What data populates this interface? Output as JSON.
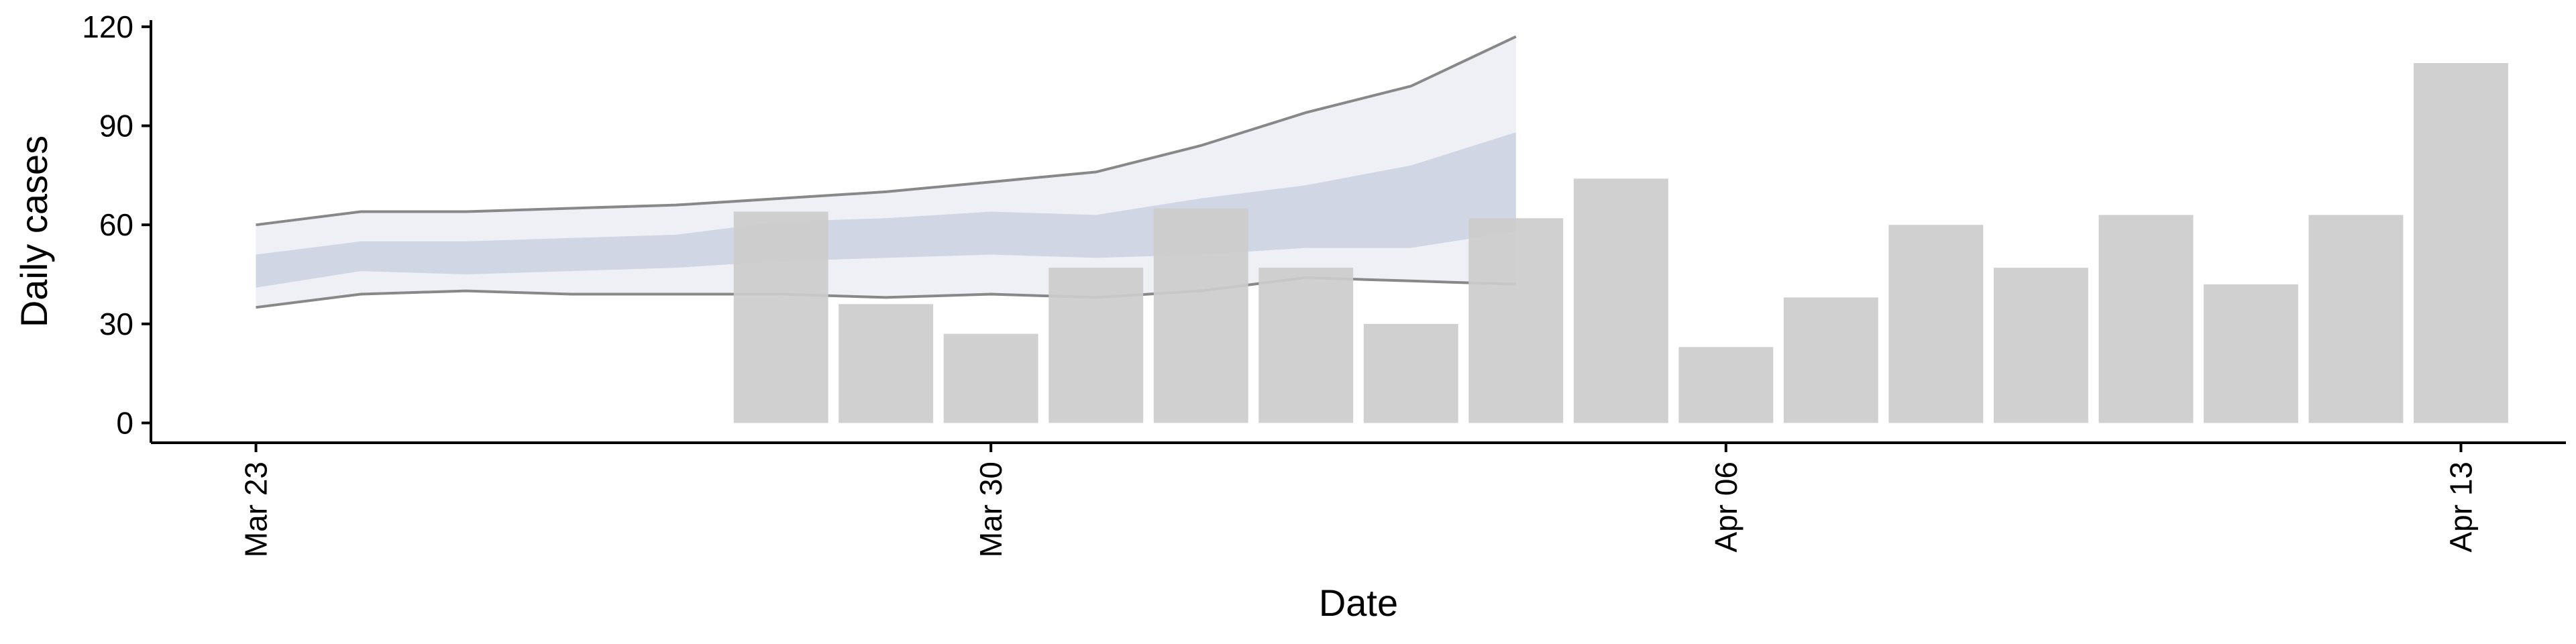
{
  "chart_data": {
    "type": "bar",
    "title": "",
    "xlabel": "Date",
    "ylabel": "Daily cases",
    "ylim": [
      -6,
      122
    ],
    "xlim": [
      "2020-03-22",
      "2020-04-14"
    ],
    "yticks": [
      0,
      30,
      60,
      90,
      120
    ],
    "xticks": [
      {
        "date": "2020-03-23",
        "label": "Mar 23"
      },
      {
        "date": "2020-03-30",
        "label": "Mar 30"
      },
      {
        "date": "2020-04-06",
        "label": "Apr 06"
      },
      {
        "date": "2020-04-13",
        "label": "Apr 13"
      }
    ],
    "grid": false,
    "legend": "none",
    "bars": {
      "color": "#cccccc",
      "x": [
        "2020-03-28",
        "2020-03-29",
        "2020-03-30",
        "2020-03-31",
        "2020-04-01",
        "2020-04-02",
        "2020-04-03",
        "2020-04-04",
        "2020-04-05",
        "2020-04-06",
        "2020-04-07",
        "2020-04-08",
        "2020-04-09",
        "2020-04-10",
        "2020-04-11",
        "2020-04-12",
        "2020-04-13"
      ],
      "values": [
        64,
        36,
        27,
        47,
        65,
        47,
        30,
        62,
        74,
        23,
        38,
        60,
        47,
        63,
        42,
        63,
        109
      ]
    },
    "forecast": {
      "color": "#8a94b8",
      "line_color": "#888888",
      "x": [
        "2020-03-23",
        "2020-03-24",
        "2020-03-25",
        "2020-03-26",
        "2020-03-27",
        "2020-03-28",
        "2020-03-29",
        "2020-03-30",
        "2020-03-31",
        "2020-04-01",
        "2020-04-02",
        "2020-04-03",
        "2020-04-04"
      ],
      "upper90": [
        60,
        64,
        64,
        65,
        66,
        68,
        70,
        73,
        76,
        84,
        94,
        102,
        117
      ],
      "lower90": [
        35,
        39,
        40,
        39,
        39,
        39,
        38,
        39,
        38,
        40,
        44,
        43,
        42
      ],
      "upper50": [
        51,
        55,
        55,
        56,
        57,
        61,
        62,
        64,
        63,
        68,
        72,
        78,
        88
      ],
      "lower50": [
        41,
        46,
        45,
        46,
        47,
        49,
        50,
        51,
        50,
        51,
        53,
        53,
        58
      ]
    }
  }
}
